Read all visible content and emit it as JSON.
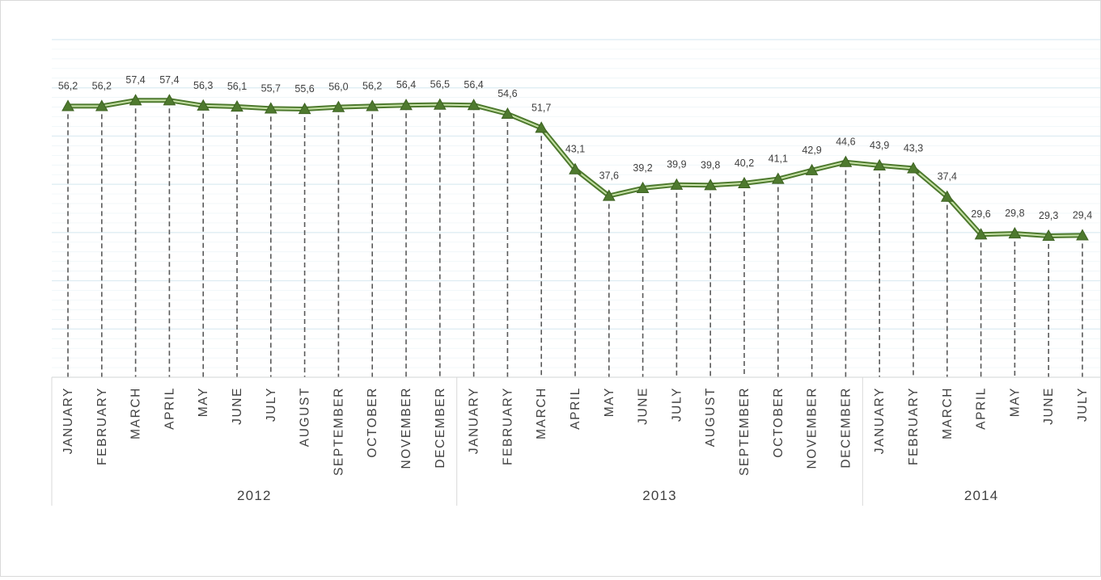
{
  "chart_data": {
    "type": "line",
    "title": "",
    "xlabel": "",
    "ylabel": "",
    "ylim": [
      0,
      70
    ],
    "grid": true,
    "legend": "none",
    "series_color": "#4e7a2e",
    "series_inner_color": "#c5e0a5",
    "gridline_color": "#dcebf2",
    "drop_line_color": "#595959",
    "x": [
      {
        "month": "JANUARY",
        "year": "2012"
      },
      {
        "month": "FEBRUARY",
        "year": "2012"
      },
      {
        "month": "MARCH",
        "year": "2012"
      },
      {
        "month": "APRIL",
        "year": "2012"
      },
      {
        "month": "MAY",
        "year": "2012"
      },
      {
        "month": "JUNE",
        "year": "2012"
      },
      {
        "month": "JULY",
        "year": "2012"
      },
      {
        "month": "AUGUST",
        "year": "2012"
      },
      {
        "month": "SEPTEMBER",
        "year": "2012"
      },
      {
        "month": "OCTOBER",
        "year": "2012"
      },
      {
        "month": "NOVEMBER",
        "year": "2012"
      },
      {
        "month": "DECEMBER",
        "year": "2012"
      },
      {
        "month": "JANUARY",
        "year": "2013"
      },
      {
        "month": "FEBRUARY",
        "year": "2013"
      },
      {
        "month": "MARCH",
        "year": "2013"
      },
      {
        "month": "APRIL",
        "year": "2013"
      },
      {
        "month": "MAY",
        "year": "2013"
      },
      {
        "month": "JUNE",
        "year": "2013"
      },
      {
        "month": "JULY",
        "year": "2013"
      },
      {
        "month": "AUGUST",
        "year": "2013"
      },
      {
        "month": "SEPTEMBER",
        "year": "2013"
      },
      {
        "month": "OCTOBER",
        "year": "2013"
      },
      {
        "month": "NOVEMBER",
        "year": "2013"
      },
      {
        "month": "DECEMBER",
        "year": "2013"
      },
      {
        "month": "JANUARY",
        "year": "2014"
      },
      {
        "month": "FEBRUARY",
        "year": "2014"
      },
      {
        "month": "MARCH",
        "year": "2014"
      },
      {
        "month": "APRIL",
        "year": "2014"
      },
      {
        "month": "MAY",
        "year": "2014"
      },
      {
        "month": "JUNE",
        "year": "2014"
      },
      {
        "month": "JULY",
        "year": "2014"
      }
    ],
    "years": [
      "2012",
      "2013",
      "2014"
    ],
    "series": [
      {
        "values": [
          56.2,
          56.2,
          57.4,
          57.4,
          56.3,
          56.1,
          55.7,
          55.6,
          56.0,
          56.2,
          56.4,
          56.5,
          56.4,
          54.6,
          51.7,
          43.1,
          37.6,
          39.2,
          39.9,
          39.8,
          40.2,
          41.1,
          42.9,
          44.6,
          43.9,
          43.3,
          37.4,
          29.6,
          29.8,
          29.3,
          29.4
        ],
        "labels": [
          "56,2",
          "56,2",
          "57,4",
          "57,4",
          "56,3",
          "56,1",
          "55,7",
          "55,6",
          "56,0",
          "56,2",
          "56,4",
          "56,5",
          "56,4",
          "54,6",
          "51,7",
          "43,1",
          "37,6",
          "39,2",
          "39,9",
          "39,8",
          "40,2",
          "41,1",
          "42,9",
          "44,6",
          "43,9",
          "43,3",
          "37,4",
          "29,6",
          "29,8",
          "29,3",
          "29,4"
        ]
      }
    ]
  }
}
